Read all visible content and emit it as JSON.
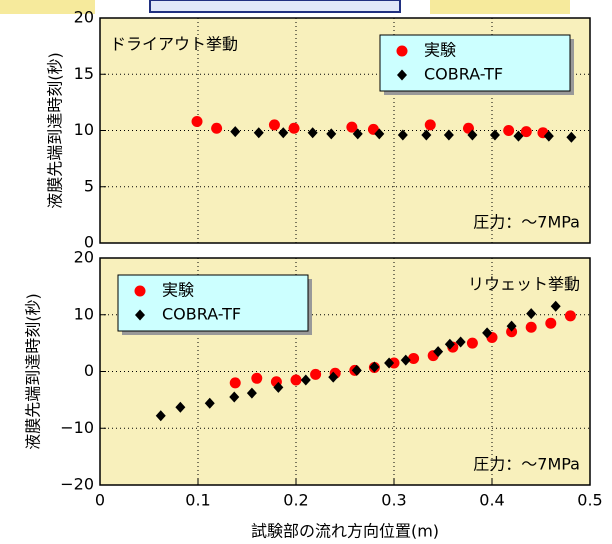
{
  "chart_data": [
    {
      "type": "scatter",
      "title": "ドライアウト挙動",
      "annotation": "圧力：～7MPa",
      "ylabel": "液膜先端到達時刻(秒)",
      "xlim": [
        0,
        0.5
      ],
      "ylim": [
        0,
        20
      ],
      "yticks": [
        0,
        5,
        10,
        15,
        20
      ],
      "grid": true,
      "legend": "upper right",
      "series": [
        {
          "name": "実験",
          "color": "#ff0000",
          "marker": "circle",
          "x": [
            0.099,
            0.119,
            0.178,
            0.198,
            0.257,
            0.279,
            0.337,
            0.376,
            0.417,
            0.435,
            0.452
          ],
          "values": [
            10.8,
            10.2,
            10.5,
            10.2,
            10.3,
            10.1,
            10.5,
            10.2,
            10.0,
            9.9,
            9.8
          ]
        },
        {
          "name": "COBRA-TF",
          "color": "#000000",
          "marker": "diamond",
          "x": [
            0.138,
            0.162,
            0.187,
            0.217,
            0.236,
            0.263,
            0.285,
            0.309,
            0.333,
            0.356,
            0.38,
            0.403,
            0.427,
            0.458,
            0.481
          ],
          "values": [
            9.9,
            9.8,
            9.8,
            9.8,
            9.7,
            9.7,
            9.7,
            9.6,
            9.6,
            9.6,
            9.6,
            9.6,
            9.5,
            9.5,
            9.4
          ]
        }
      ]
    },
    {
      "type": "scatter",
      "title": "リウェット挙動",
      "annotation": "圧力：～7MPa",
      "ylabel": "液膜先端到達時刻(秒)",
      "xlabel": "試験部の流れ方向位置(m)",
      "xlim": [
        0,
        0.5
      ],
      "xticks": [
        0,
        0.1,
        0.2,
        0.3,
        0.4,
        0.5
      ],
      "ylim": [
        -20,
        20
      ],
      "yticks": [
        {
          "value": -20,
          "label": "−20"
        },
        {
          "value": -10,
          "label": "−10"
        },
        0,
        10,
        20
      ],
      "grid": true,
      "legend": "upper left",
      "series": [
        {
          "name": "実験",
          "color": "#ff0000",
          "marker": "circle",
          "x": [
            0.138,
            0.16,
            0.18,
            0.2,
            0.22,
            0.24,
            0.26,
            0.28,
            0.3,
            0.32,
            0.34,
            0.36,
            0.38,
            0.4,
            0.42,
            0.44,
            0.46,
            0.48
          ],
          "values": [
            -2.0,
            -1.2,
            -1.8,
            -1.5,
            -0.5,
            -0.3,
            0.2,
            0.7,
            1.5,
            2.3,
            2.8,
            4.3,
            5.0,
            6.0,
            7.0,
            7.8,
            8.5,
            9.8
          ]
        },
        {
          "name": "COBRA-TF",
          "color": "#000000",
          "marker": "diamond",
          "x": [
            0.062,
            0.082,
            0.112,
            0.137,
            0.155,
            0.182,
            0.21,
            0.238,
            0.262,
            0.28,
            0.295,
            0.312,
            0.345,
            0.357,
            0.368,
            0.395,
            0.42,
            0.44,
            0.465
          ],
          "values": [
            -7.8,
            -6.3,
            -5.6,
            -4.5,
            -3.8,
            -2.8,
            -1.5,
            -1.0,
            0.2,
            0.8,
            1.5,
            2.0,
            3.5,
            4.8,
            5.2,
            6.8,
            8.0,
            10.2,
            11.5
          ]
        }
      ]
    }
  ]
}
